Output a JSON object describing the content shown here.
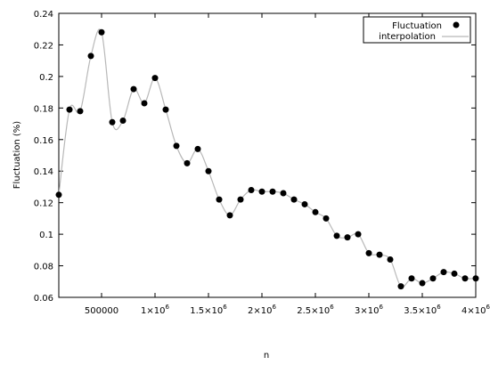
{
  "chart_data": {
    "type": "scatter",
    "xlabel": "n",
    "ylabel": "Fluctuation (%)",
    "xlim": [
      100000,
      4000000
    ],
    "ylim": [
      0.06,
      0.24
    ],
    "x_ticks": [
      {
        "value": 500000,
        "label": "500000"
      },
      {
        "value": 1000000,
        "label": "1×10",
        "exp": "6"
      },
      {
        "value": 1500000,
        "label": "1.5×10",
        "exp": "6"
      },
      {
        "value": 2000000,
        "label": "2×10",
        "exp": "6"
      },
      {
        "value": 2500000,
        "label": "2.5×10",
        "exp": "6"
      },
      {
        "value": 3000000,
        "label": "3×10",
        "exp": "6"
      },
      {
        "value": 3500000,
        "label": "3.5×10",
        "exp": "6"
      },
      {
        "value": 4000000,
        "label": "4×10",
        "exp": "6"
      }
    ],
    "y_ticks": [
      {
        "value": 0.06,
        "label": "0.06"
      },
      {
        "value": 0.08,
        "label": "0.08"
      },
      {
        "value": 0.1,
        "label": "0.1"
      },
      {
        "value": 0.12,
        "label": "0.12"
      },
      {
        "value": 0.14,
        "label": "0.14"
      },
      {
        "value": 0.16,
        "label": "0.16"
      },
      {
        "value": 0.18,
        "label": "0.18"
      },
      {
        "value": 0.2,
        "label": "0.2"
      },
      {
        "value": 0.22,
        "label": "0.22"
      },
      {
        "value": 0.24,
        "label": "0.24"
      }
    ],
    "legend_position": "top-right",
    "grid": false,
    "series": [
      {
        "name": "Fluctuation",
        "style": "points",
        "color": "#000000",
        "x": [
          100000,
          200000,
          300000,
          400000,
          500000,
          600000,
          700000,
          800000,
          900000,
          1000000,
          1100000,
          1200000,
          1300000,
          1400000,
          1500000,
          1600000,
          1700000,
          1800000,
          1900000,
          2000000,
          2100000,
          2200000,
          2300000,
          2400000,
          2500000,
          2600000,
          2700000,
          2800000,
          2900000,
          3000000,
          3100000,
          3200000,
          3300000,
          3400000,
          3500000,
          3600000,
          3700000,
          3800000,
          3900000,
          4000000
        ],
        "y": [
          0.125,
          0.179,
          0.178,
          0.213,
          0.228,
          0.171,
          0.172,
          0.192,
          0.183,
          0.199,
          0.179,
          0.156,
          0.145,
          0.154,
          0.14,
          0.122,
          0.112,
          0.122,
          0.128,
          0.127,
          0.127,
          0.126,
          0.122,
          0.119,
          0.114,
          0.11,
          0.099,
          0.098,
          0.1,
          0.088,
          0.087,
          0.084,
          0.067,
          0.072,
          0.069,
          0.072,
          0.076,
          0.075,
          0.072,
          0.072
        ]
      },
      {
        "name": "interpolation",
        "style": "line",
        "color": "#b0b0b0"
      }
    ]
  }
}
